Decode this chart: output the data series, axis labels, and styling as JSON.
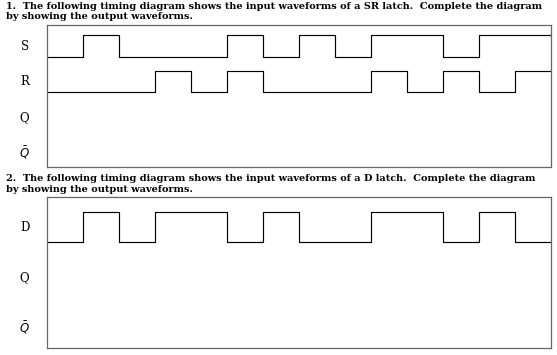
{
  "title1": "1.  The following timing diagram shows the input waveforms of a SR latch.  Complete the diagram",
  "title1b": "by showing the output waveforms.",
  "title2": "2.  The following timing diagram shows the input waveforms of a D latch.  Complete the diagram",
  "title2b": "by showing the output waveforms.",
  "SR_S_x": [
    0,
    1,
    1,
    2,
    2,
    5,
    5,
    6,
    6,
    7,
    7,
    8,
    8,
    9,
    9,
    11,
    11,
    12,
    12,
    14
  ],
  "SR_S_y": [
    0,
    0,
    1,
    1,
    0,
    0,
    1,
    1,
    0,
    0,
    1,
    1,
    0,
    0,
    1,
    1,
    0,
    0,
    1,
    1
  ],
  "SR_R_x": [
    0,
    3,
    3,
    4,
    4,
    5,
    5,
    6,
    6,
    9,
    9,
    10,
    10,
    11,
    11,
    12,
    12,
    13,
    13,
    14
  ],
  "SR_R_y": [
    0,
    0,
    1,
    1,
    0,
    0,
    1,
    1,
    0,
    0,
    1,
    1,
    0,
    0,
    1,
    1,
    0,
    0,
    1,
    1
  ],
  "D_x": [
    0,
    1,
    1,
    2,
    2,
    3,
    3,
    5,
    5,
    6,
    6,
    7,
    7,
    9,
    9,
    11,
    11,
    12,
    12,
    13,
    13,
    14
  ],
  "D_y": [
    0,
    0,
    1,
    1,
    0,
    0,
    1,
    1,
    0,
    0,
    1,
    1,
    0,
    0,
    1,
    1,
    0,
    0,
    1,
    1,
    0,
    0
  ],
  "total_time": 14,
  "bg_color": "#ffffff",
  "line_color": "#000000",
  "box_color": "#666666",
  "label_fontsize": 8.5,
  "text_fontsize": 7.0
}
